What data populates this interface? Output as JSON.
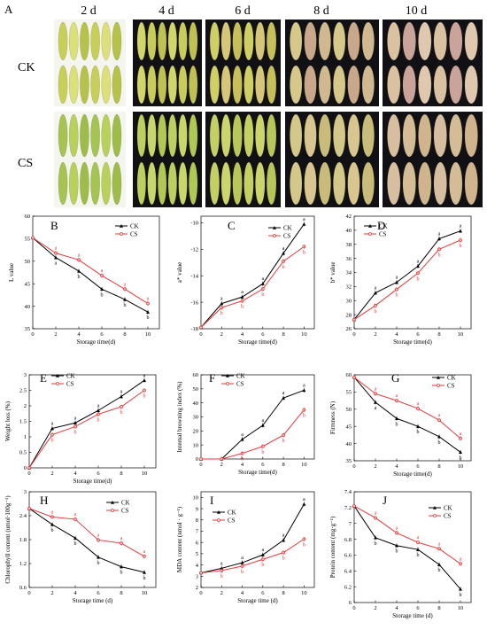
{
  "photo_panel": {
    "label": "A",
    "days": [
      "2 d",
      "4 d",
      "6 d",
      "8 d",
      "10 d"
    ],
    "groups": [
      "CK",
      "CS"
    ]
  },
  "legend": {
    "ck": "CK",
    "cs": "CS"
  },
  "colors": {
    "ck": "#000000",
    "cs": "#e8393a"
  },
  "chart_data": [
    {
      "panel": "B",
      "type": "line",
      "xlabel": "Storage time(d)",
      "ylabel": "L value",
      "xlim": [
        0,
        11
      ],
      "ylim": [
        35,
        60
      ],
      "xticks": [
        0,
        2,
        4,
        6,
        8,
        10
      ],
      "yticks": [
        35,
        40,
        45,
        50,
        55,
        60
      ],
      "x": [
        0,
        2,
        4,
        6,
        8,
        10
      ],
      "series": [
        {
          "name": "CK",
          "values": [
            55.2,
            50.8,
            47.8,
            43.8,
            41.5,
            38.7
          ],
          "labels": [
            "",
            "a",
            "b",
            "b",
            "b",
            "b"
          ]
        },
        {
          "name": "CS",
          "values": [
            55.2,
            51.8,
            50.3,
            46.8,
            43.8,
            40.6
          ],
          "labels": [
            "",
            "a",
            "a",
            "a",
            "a",
            "a"
          ]
        }
      ]
    },
    {
      "panel": "C",
      "type": "line",
      "xlabel": "Storage time(d)",
      "ylabel": "a* value",
      "xlim": [
        0,
        11
      ],
      "ylim": [
        -18,
        -9.5
      ],
      "xticks": [
        0,
        2,
        4,
        6,
        8,
        10
      ],
      "yticks": [
        -18,
        -16,
        -14,
        -12,
        -10
      ],
      "x": [
        0,
        2,
        4,
        6,
        8,
        10
      ],
      "series": [
        {
          "name": "CK",
          "values": [
            -17.9,
            -16.1,
            -15.6,
            -14.6,
            -12.3,
            -10.1
          ],
          "labels": [
            "",
            "a",
            "a",
            "a",
            "a",
            "a"
          ]
        },
        {
          "name": "CS",
          "values": [
            -17.9,
            -16.4,
            -15.9,
            -15.0,
            -12.9,
            -11.8
          ],
          "labels": [
            "",
            "b",
            "b",
            "b",
            "b",
            "b"
          ]
        }
      ]
    },
    {
      "panel": "D",
      "type": "line",
      "xlabel": "Storage time(d)",
      "ylabel": "b* value",
      "xlim": [
        0,
        11
      ],
      "ylim": [
        26,
        42
      ],
      "xticks": [
        0,
        2,
        4,
        6,
        8,
        10
      ],
      "yticks": [
        26,
        28,
        30,
        32,
        34,
        36,
        38,
        40,
        42
      ],
      "x": [
        0,
        2,
        4,
        6,
        8,
        10
      ],
      "series": [
        {
          "name": "CK",
          "values": [
            27.3,
            31.1,
            32.6,
            34.9,
            38.8,
            39.9
          ],
          "labels": [
            "",
            "a",
            "a",
            "a",
            "a",
            "a"
          ]
        },
        {
          "name": "CS",
          "values": [
            27.3,
            29.3,
            31.6,
            33.9,
            37.3,
            38.6
          ],
          "labels": [
            "",
            "b",
            "b",
            "b",
            "b",
            "b"
          ]
        }
      ]
    },
    {
      "panel": "E",
      "type": "line",
      "xlabel": "Storage time(d)",
      "ylabel": "Weight loss (%)",
      "xlim": [
        0,
        11
      ],
      "ylim": [
        0,
        3.0
      ],
      "xticks": [
        0,
        2,
        4,
        6,
        8,
        10
      ],
      "yticks": [
        0,
        0.5,
        1.0,
        1.5,
        2.0,
        2.5,
        3.0
      ],
      "x": [
        0,
        2,
        4,
        6,
        8,
        10
      ],
      "series": [
        {
          "name": "CK",
          "values": [
            0,
            1.27,
            1.45,
            1.85,
            2.3,
            2.82
          ],
          "labels": [
            "",
            "a",
            "a",
            "a",
            "a",
            "a"
          ]
        },
        {
          "name": "CS",
          "values": [
            0,
            1.07,
            1.33,
            1.73,
            1.97,
            2.5
          ],
          "labels": [
            "",
            "b",
            "b",
            "b",
            "b",
            "b"
          ]
        }
      ]
    },
    {
      "panel": "F",
      "type": "line",
      "xlabel": "Storage time(d)",
      "ylabel": "Internal browning index (%)",
      "xlim": [
        0,
        11
      ],
      "ylim": [
        0,
        60
      ],
      "xticks": [
        0,
        2,
        4,
        6,
        8,
        10
      ],
      "yticks": [
        0,
        10,
        20,
        30,
        40,
        50,
        60
      ],
      "x": [
        0,
        2,
        4,
        6,
        8,
        10
      ],
      "series": [
        {
          "name": "CK",
          "values": [
            0,
            0,
            14,
            24,
            43.5,
            49
          ],
          "labels": [
            "",
            "",
            "a",
            "a",
            "a",
            "a"
          ]
        },
        {
          "name": "CS",
          "values": [
            0,
            0,
            4,
            9,
            17,
            35
          ],
          "labels": [
            "",
            "",
            "b",
            "b",
            "b",
            "b"
          ]
        }
      ]
    },
    {
      "panel": "G",
      "type": "line",
      "xlabel": "Storage time(d)",
      "ylabel": "Firmness (N)",
      "xlim": [
        0,
        11
      ],
      "ylim": [
        35,
        60
      ],
      "xticks": [
        0,
        2,
        4,
        6,
        8,
        10
      ],
      "yticks": [
        35,
        40,
        45,
        50,
        55,
        60
      ],
      "x": [
        0,
        2,
        4,
        6,
        8,
        10
      ],
      "series": [
        {
          "name": "CK",
          "values": [
            59.3,
            52,
            47.3,
            45,
            42,
            37.5
          ],
          "labels": [
            "",
            "a",
            "b",
            "b",
            "b",
            "b"
          ]
        },
        {
          "name": "CS",
          "values": [
            59.3,
            54.5,
            52.5,
            50.2,
            46.8,
            41.5
          ],
          "labels": [
            "",
            "a",
            "a",
            "a",
            "a",
            "a"
          ]
        }
      ]
    },
    {
      "panel": "H",
      "type": "line",
      "xlabel": "Storage time (d)",
      "ylabel": "Chlorophyll content (umol·100g⁻¹)",
      "xlim": [
        0,
        11
      ],
      "ylim": [
        0.6,
        3.0
      ],
      "xticks": [
        0,
        2,
        4,
        6,
        8,
        10
      ],
      "yticks": [
        0.6,
        1.2,
        1.8,
        2.4,
        3.0
      ],
      "x": [
        0,
        2,
        4,
        6,
        8,
        10
      ],
      "series": [
        {
          "name": "CK",
          "values": [
            2.58,
            2.18,
            1.84,
            1.36,
            1.12,
            0.98
          ],
          "labels": [
            "",
            "b",
            "b",
            "b",
            "b",
            "b"
          ]
        },
        {
          "name": "CS",
          "values": [
            2.58,
            2.37,
            2.31,
            1.79,
            1.71,
            1.38
          ],
          "labels": [
            "",
            "a",
            "a",
            "a",
            "a",
            "a"
          ]
        }
      ]
    },
    {
      "panel": "I",
      "type": "line",
      "xlabel": "Storage time (d)",
      "ylabel": "MDA content (nmol · g⁻¹)",
      "xlim": [
        0,
        11
      ],
      "ylim": [
        2,
        10.5
      ],
      "xticks": [
        0,
        2,
        4,
        6,
        8,
        10
      ],
      "yticks": [
        2,
        3,
        4,
        5,
        6,
        7,
        8,
        9,
        10
      ],
      "x": [
        0,
        2,
        4,
        6,
        8,
        10
      ],
      "series": [
        {
          "name": "CK",
          "values": [
            3.3,
            3.7,
            4.2,
            4.9,
            6.2,
            9.4
          ],
          "labels": [
            "",
            "a",
            "a",
            "a",
            "a",
            "a"
          ]
        },
        {
          "name": "CS",
          "values": [
            3.3,
            3.5,
            3.9,
            4.5,
            5.1,
            6.3
          ],
          "labels": [
            "",
            "b",
            "b",
            "b",
            "b",
            "b"
          ]
        }
      ]
    },
    {
      "panel": "J",
      "type": "line",
      "xlabel": "Storage time (d)",
      "ylabel": "Protein content (mg·g⁻¹)",
      "xlim": [
        0,
        11
      ],
      "ylim": [
        6.0,
        7.4
      ],
      "xticks": [
        0,
        2,
        4,
        6,
        8,
        10
      ],
      "yticks": [
        6.0,
        6.2,
        6.4,
        6.6,
        6.8,
        7.0,
        7.2,
        7.4
      ],
      "x": [
        0,
        2,
        4,
        6,
        8,
        10
      ],
      "series": [
        {
          "name": "CK",
          "values": [
            7.22,
            6.82,
            6.72,
            6.67,
            6.48,
            6.17
          ],
          "labels": [
            "",
            "b",
            "b",
            "b",
            "b",
            "b"
          ]
        },
        {
          "name": "CS",
          "values": [
            7.22,
            7.07,
            6.88,
            6.76,
            6.68,
            6.49
          ],
          "labels": [
            "",
            "a",
            "a",
            "a",
            "a",
            "a"
          ]
        }
      ]
    }
  ]
}
